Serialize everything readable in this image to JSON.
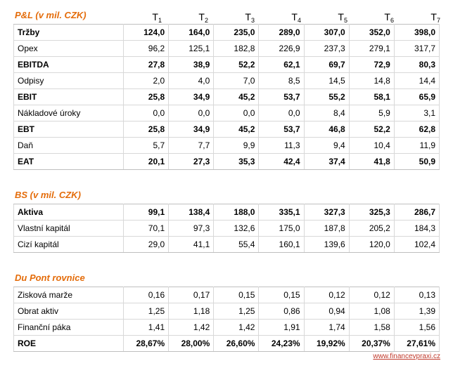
{
  "periods": [
    {
      "letter": "T",
      "sub": "1"
    },
    {
      "letter": "T",
      "sub": "2"
    },
    {
      "letter": "T",
      "sub": "3"
    },
    {
      "letter": "T",
      "sub": "4"
    },
    {
      "letter": "T",
      "sub": "5"
    },
    {
      "letter": "T",
      "sub": "6"
    },
    {
      "letter": "T",
      "sub": "7"
    }
  ],
  "sections": [
    {
      "title": "P&L (v mil. CZK)",
      "show_periods": true,
      "rows": [
        {
          "label": "Tržby",
          "bold": true,
          "values": [
            "124,0",
            "164,0",
            "235,0",
            "289,0",
            "307,0",
            "352,0",
            "398,0"
          ]
        },
        {
          "label": "Opex",
          "bold": false,
          "values": [
            "96,2",
            "125,1",
            "182,8",
            "226,9",
            "237,3",
            "279,1",
            "317,7"
          ]
        },
        {
          "label": "EBITDA",
          "bold": true,
          "values": [
            "27,8",
            "38,9",
            "52,2",
            "62,1",
            "69,7",
            "72,9",
            "80,3"
          ]
        },
        {
          "label": "Odpisy",
          "bold": false,
          "values": [
            "2,0",
            "4,0",
            "7,0",
            "8,5",
            "14,5",
            "14,8",
            "14,4"
          ]
        },
        {
          "label": "EBIT",
          "bold": true,
          "values": [
            "25,8",
            "34,9",
            "45,2",
            "53,7",
            "55,2",
            "58,1",
            "65,9"
          ]
        },
        {
          "label": "Nákladové úroky",
          "bold": false,
          "values": [
            "0,0",
            "0,0",
            "0,0",
            "0,0",
            "8,4",
            "5,9",
            "3,1"
          ]
        },
        {
          "label": "EBT",
          "bold": true,
          "values": [
            "25,8",
            "34,9",
            "45,2",
            "53,7",
            "46,8",
            "52,2",
            "62,8"
          ]
        },
        {
          "label": "Daň",
          "bold": false,
          "values": [
            "5,7",
            "7,7",
            "9,9",
            "11,3",
            "9,4",
            "10,4",
            "11,9"
          ]
        },
        {
          "label": "EAT",
          "bold": true,
          "values": [
            "20,1",
            "27,3",
            "35,3",
            "42,4",
            "37,4",
            "41,8",
            "50,9"
          ]
        }
      ]
    },
    {
      "title": "BS (v mil. CZK)",
      "show_periods": false,
      "rows": [
        {
          "label": "Aktiva",
          "bold": true,
          "values": [
            "99,1",
            "138,4",
            "188,0",
            "335,1",
            "327,3",
            "325,3",
            "286,7"
          ]
        },
        {
          "label": "Vlastní kapitál",
          "bold": false,
          "values": [
            "70,1",
            "97,3",
            "132,6",
            "175,0",
            "187,8",
            "205,2",
            "184,3"
          ]
        },
        {
          "label": "Cizí kapitál",
          "bold": false,
          "values": [
            "29,0",
            "41,1",
            "55,4",
            "160,1",
            "139,6",
            "120,0",
            "102,4"
          ]
        }
      ]
    },
    {
      "title": "Du Pont rovnice",
      "show_periods": false,
      "rows": [
        {
          "label": "Zisková marže",
          "bold": false,
          "values": [
            "0,16",
            "0,17",
            "0,15",
            "0,15",
            "0,12",
            "0,12",
            "0,13"
          ]
        },
        {
          "label": "Obrat aktiv",
          "bold": false,
          "values": [
            "1,25",
            "1,18",
            "1,25",
            "0,86",
            "0,94",
            "1,08",
            "1,39"
          ]
        },
        {
          "label": "Finanční páka",
          "bold": false,
          "values": [
            "1,41",
            "1,42",
            "1,42",
            "1,91",
            "1,74",
            "1,58",
            "1,56"
          ]
        },
        {
          "label": "ROE",
          "bold": true,
          "values": [
            "28,67%",
            "28,00%",
            "26,60%",
            "24,23%",
            "19,92%",
            "20,37%",
            "27,61%"
          ]
        }
      ]
    }
  ],
  "source_link": "www.financevpraxi.cz",
  "colors": {
    "title": "#e46c0a",
    "link": "#c0392b",
    "border": "#d8d8d8"
  }
}
